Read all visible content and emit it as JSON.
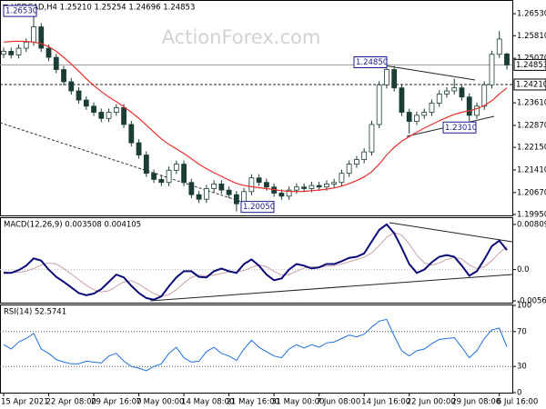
{
  "chart_data": [
    {
      "type": "candlestick",
      "title": "USDCAD,H4  1.25210 1.25254 1.24696 1.24853",
      "watermark": "ActionForex.com",
      "x": [
        "15 Apr 2021",
        null,
        null,
        null,
        null,
        null,
        "22 Apr 08:00",
        null,
        null,
        null,
        null,
        null,
        "29 Apr 16:00",
        null,
        null,
        null,
        null,
        null,
        "7 May 00:00",
        null,
        null,
        null,
        null,
        null,
        "14 May 08:00",
        null,
        null,
        null,
        null,
        null,
        "21 May 16:00",
        null,
        null,
        null,
        null,
        null,
        "31 May 00:00",
        null,
        null,
        null,
        null,
        null,
        "7 Jun 08:00",
        null,
        null,
        null,
        null,
        null,
        "14 Jun 16:00",
        null,
        null,
        null,
        null,
        null,
        "22 Jun 00:00",
        null,
        null,
        null,
        null,
        null,
        "29 Jun 08:00",
        null,
        null,
        null,
        null,
        null,
        "6 Jul 16:00",
        null
      ],
      "open": [
        1.252,
        1.253,
        1.2518,
        1.254,
        1.256,
        1.261,
        1.254,
        1.251,
        1.247,
        1.243,
        1.24,
        1.237,
        1.235,
        1.233,
        1.231,
        1.233,
        1.2345,
        1.229,
        1.223,
        1.219,
        1.213,
        1.211,
        1.21,
        1.214,
        1.216,
        1.21,
        1.206,
        1.2045,
        1.208,
        1.2095,
        1.2075,
        1.206,
        1.203,
        1.207,
        1.2115,
        1.21,
        1.2085,
        1.2065,
        1.2055,
        1.2075,
        1.2085,
        1.208,
        1.209,
        1.2085,
        1.2095,
        1.21,
        1.213,
        1.216,
        1.2175,
        1.22,
        1.229,
        1.242,
        1.247,
        1.241,
        1.233,
        1.23,
        1.232,
        1.233,
        1.236,
        1.239,
        1.24,
        1.241,
        1.238,
        1.232,
        1.235,
        1.242,
        1.252,
        1.2521
      ],
      "high": [
        1.2542,
        1.2542,
        1.2552,
        1.2572,
        1.2653,
        1.2622,
        1.2552,
        1.2522,
        1.2482,
        1.2442,
        1.2412,
        1.2382,
        1.2362,
        1.2342,
        1.2342,
        1.2357,
        1.2357,
        1.2302,
        1.2242,
        1.2202,
        1.2142,
        1.2122,
        1.2152,
        1.2172,
        1.2172,
        1.2112,
        1.2072,
        1.2092,
        1.2107,
        1.2107,
        1.2087,
        1.2072,
        1.2082,
        1.2127,
        1.2127,
        1.2112,
        1.2097,
        1.2077,
        1.2087,
        1.2097,
        1.2097,
        1.2102,
        1.2102,
        1.2107,
        1.2112,
        1.2142,
        1.2172,
        1.2187,
        1.2212,
        1.2302,
        1.2432,
        1.2485,
        1.2482,
        1.2422,
        1.2342,
        1.2332,
        1.2342,
        1.2372,
        1.2402,
        1.2412,
        1.244,
        1.2422,
        1.2392,
        1.2362,
        1.2432,
        1.2532,
        1.2596,
        1.25254
      ],
      "low": [
        1.2508,
        1.2506,
        1.2506,
        1.2528,
        1.2548,
        1.2528,
        1.2498,
        1.2458,
        1.2418,
        1.2388,
        1.2358,
        1.2338,
        1.2318,
        1.2298,
        1.2298,
        1.2318,
        1.2278,
        1.2218,
        1.2178,
        1.2118,
        1.2098,
        1.2088,
        1.2088,
        1.2128,
        1.2088,
        1.2048,
        1.2033,
        1.2033,
        1.2068,
        1.2063,
        1.2048,
        1.2005,
        1.2018,
        1.2058,
        1.2088,
        1.2073,
        1.2053,
        1.2043,
        1.2043,
        1.2063,
        1.2068,
        1.2068,
        1.2073,
        1.2073,
        1.2083,
        1.2088,
        1.2118,
        1.2148,
        1.2163,
        1.2188,
        1.2278,
        1.2408,
        1.2398,
        1.2318,
        1.226,
        1.2288,
        1.2308,
        1.2318,
        1.2348,
        1.2378,
        1.2388,
        1.2368,
        1.2301,
        1.2308,
        1.2338,
        1.2408,
        1.2508,
        1.24696
      ],
      "close": [
        1.253,
        1.2518,
        1.254,
        1.256,
        1.261,
        1.254,
        1.251,
        1.247,
        1.243,
        1.24,
        1.237,
        1.235,
        1.233,
        1.231,
        1.233,
        1.2345,
        1.229,
        1.223,
        1.219,
        1.213,
        1.211,
        1.21,
        1.214,
        1.216,
        1.21,
        1.206,
        1.2045,
        1.208,
        1.2095,
        1.2075,
        1.206,
        1.203,
        1.207,
        1.2115,
        1.21,
        1.2085,
        1.2065,
        1.2055,
        1.2075,
        1.2085,
        1.208,
        1.209,
        1.2085,
        1.2095,
        1.21,
        1.213,
        1.216,
        1.2175,
        1.22,
        1.229,
        1.242,
        1.247,
        1.241,
        1.233,
        1.23,
        1.232,
        1.233,
        1.236,
        1.239,
        1.24,
        1.241,
        1.238,
        1.232,
        1.235,
        1.242,
        1.252,
        1.257,
        1.24853
      ],
      "up_color": "#ffffff",
      "down_color": "#1b3d36",
      "wick_color": "#1b3d36",
      "ma": {
        "color": "#e8302a",
        "values": [
          1.256,
          1.2562,
          1.2563,
          1.2562,
          1.256,
          1.2555,
          1.2545,
          1.253,
          1.251,
          1.2488,
          1.2465,
          1.244,
          1.2418,
          1.2398,
          1.238,
          1.2365,
          1.2348,
          1.233,
          1.231,
          1.2288,
          1.2265,
          1.2243,
          1.2225,
          1.221,
          1.2195,
          1.2178,
          1.216,
          1.2145,
          1.2132,
          1.212,
          1.2108,
          1.2097,
          1.209,
          1.2086,
          1.2083,
          1.208,
          1.2077,
          1.2073,
          1.2071,
          1.207,
          1.2071,
          1.2073,
          1.2075,
          1.2078,
          1.2082,
          1.2088,
          1.2096,
          1.2106,
          1.2118,
          1.2135,
          1.216,
          1.219,
          1.2215,
          1.2235,
          1.225,
          1.2265,
          1.2278,
          1.229,
          1.2302,
          1.2313,
          1.2323,
          1.233,
          1.2335,
          1.2342,
          1.2352,
          1.2368,
          1.239,
          1.241
        ]
      },
      "ylim": [
        1.1992,
        1.2695
      ],
      "yticks": [
        {
          "value": 1.2653,
          "label": "1.26530"
        },
        {
          "value": 1.2581,
          "label": "1.25810"
        },
        {
          "value": 1.2507,
          "label": "1.25070"
        },
        {
          "value": 1.2361,
          "label": "1.23610"
        },
        {
          "value": 1.2287,
          "label": "1.22870"
        },
        {
          "value": 1.2215,
          "label": "1.22150"
        },
        {
          "value": 1.2141,
          "label": "1.21410"
        },
        {
          "value": 1.2067,
          "label": "1.20670"
        },
        {
          "value": 1.1995,
          "label": "1.19950"
        }
      ],
      "current_price": {
        "value": 1.24853,
        "label": "1.24853"
      },
      "levels": [
        {
          "value": 1.2421,
          "label": "1.24210"
        }
      ],
      "annotations": [
        {
          "value": 1.2653,
          "label": "1.26530"
        },
        {
          "value": 1.2485,
          "label": "1.24850"
        },
        {
          "value": 1.2301,
          "label": "1.23010"
        },
        {
          "value": 1.2005,
          "label": "1.20050"
        }
      ]
    },
    {
      "type": "line",
      "title": "MACD(12,26,9) 0.003508 0.004105",
      "series": [
        {
          "color": "#0a0a78",
          "width": 2,
          "values": [
            -0.0006,
            -0.0006,
            -0.0001,
            0.0007,
            0.002,
            0.0016,
            0.0,
            -0.0013,
            -0.0022,
            -0.0032,
            -0.0042,
            -0.0046,
            -0.0043,
            -0.0035,
            -0.0022,
            -0.0009,
            -0.0014,
            -0.0029,
            -0.0042,
            -0.0051,
            -0.0054,
            -0.0048,
            -0.003,
            -0.0014,
            -0.0003,
            -0.0003,
            -0.0013,
            -0.0014,
            -0.0003,
            0.0002,
            -0.0003,
            -0.0006,
            0.001,
            0.0018,
            0.0007,
            -0.0009,
            -0.0019,
            -0.0016,
            0.0,
            0.001,
            0.0007,
            0.0002,
            0.0004,
            0.001,
            0.001,
            0.0015,
            0.0021,
            0.0023,
            0.0029,
            0.005,
            0.0071,
            0.0081,
            0.0065,
            0.0039,
            0.001,
            -0.0006,
            0.0,
            0.0013,
            0.0023,
            0.0026,
            0.0023,
            0.0007,
            -0.0011,
            -0.0003,
            0.0018,
            0.0042,
            0.0052,
            0.003508
          ]
        },
        {
          "color": "#c9a0a0",
          "width": 1,
          "values": [
            -0.0004,
            -0.0005,
            -0.0005,
            -0.0003,
            0.0002,
            0.0008,
            0.0012,
            0.001,
            0.0002,
            -0.0008,
            -0.0018,
            -0.0028,
            -0.0036,
            -0.004,
            -0.0038,
            -0.003,
            -0.0022,
            -0.002,
            -0.0026,
            -0.0035,
            -0.0043,
            -0.0048,
            -0.0045,
            -0.0036,
            -0.0024,
            -0.0014,
            -0.001,
            -0.0011,
            -0.001,
            -0.0007,
            -0.0004,
            -0.0004,
            -0.0002,
            0.0004,
            0.0008,
            0.0005,
            -0.0003,
            -0.001,
            -0.0009,
            -0.0003,
            0.0003,
            0.0005,
            0.0004,
            0.0006,
            0.0007,
            0.001,
            0.0014,
            0.0018,
            0.0022,
            0.003,
            0.0043,
            0.0058,
            0.0066,
            0.0062,
            0.0046,
            0.0026,
            0.0012,
            0.0008,
            0.0012,
            0.0018,
            0.0022,
            0.0019,
            0.0008,
            0.0002,
            0.0005,
            0.0016,
            0.003,
            0.004105
          ]
        }
      ],
      "ylim": [
        -0.00593,
        0.00922
      ],
      "yticks": [
        0.008091,
        {
          "value": 0,
          "label": "0.0"
        },
        -0.005608
      ]
    },
    {
      "type": "line",
      "title": "RSI(14) 52.5741",
      "series": [
        {
          "color": "#1e6fd9",
          "width": 1,
          "values": [
            55,
            50,
            58,
            62,
            68,
            50,
            45,
            38,
            35,
            33,
            33,
            36,
            35,
            34,
            42,
            45,
            36,
            30,
            28,
            25,
            30,
            33,
            45,
            52,
            40,
            35,
            36,
            47,
            52,
            45,
            42,
            37,
            50,
            60,
            52,
            47,
            42,
            40,
            50,
            55,
            51,
            55,
            52,
            57,
            58,
            62,
            66,
            64,
            67,
            75,
            82,
            84,
            65,
            48,
            42,
            48,
            50,
            56,
            61,
            62,
            63,
            52,
            40,
            48,
            62,
            72,
            74,
            52.5741
          ]
        }
      ],
      "ylim": [
        0,
        100
      ],
      "yticks": [
        100,
        70,
        30,
        0
      ],
      "levels": [
        70,
        30
      ]
    }
  ]
}
